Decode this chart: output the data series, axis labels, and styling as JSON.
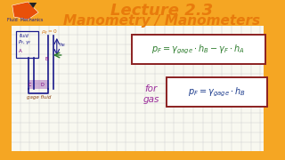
{
  "bg_orange": "#F5A623",
  "bg_white": "#F8F8F0",
  "title1": "Lecture 2.3",
  "title2": "Manometry / Manometers",
  "title_color": "#E87B0C",
  "subtitle_label": "Fluid  Mechanics",
  "subtitle_color": "#1a1a8c",
  "logo_color": "#E8500A",
  "formula1": "$p_F = \\gamma_{gage} \\cdot h_B - \\gamma_F \\cdot h_A$",
  "formula2": "$p_F = \\gamma_{gage} \\cdot h_B$",
  "formula1_color": "#2e7d2e",
  "formula2_color": "#1a3a8c",
  "for_gas_line1": "for",
  "for_gas_line2": "gas",
  "for_gas_color": "#9b2d9b",
  "box1_color": "#8B2020",
  "box2_color": "#8B2020",
  "diagram_sketch_color": "#1a1a8c",
  "gage_fluid_color": "#8B4513",
  "grid_color": "#cccccc",
  "pg0_color": "#d4760d",
  "arrow_color": "#2e7d2e"
}
